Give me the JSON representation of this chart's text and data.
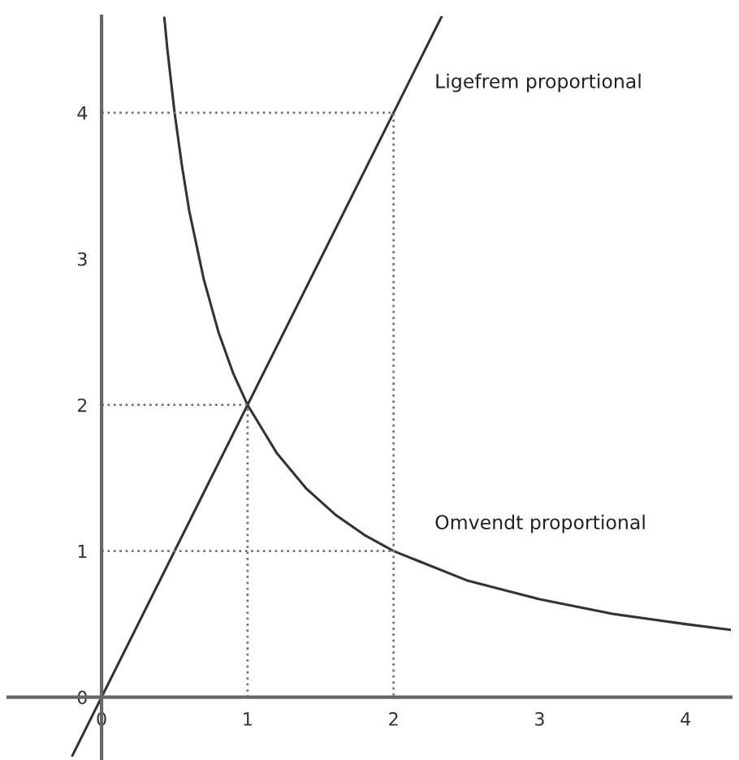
{
  "chart_data": {
    "type": "line",
    "xlim": [
      -0.64,
      4.31
    ],
    "ylim": [
      -0.43,
      4.66
    ],
    "xticks": [
      0,
      1,
      2,
      3,
      4
    ],
    "yticks": [
      0,
      1,
      2,
      3,
      4
    ],
    "grid": false,
    "legend": false,
    "marker": "none",
    "series": [
      {
        "name": "Ligefrem proportional",
        "x": [
          -0.2,
          2.33
        ],
        "values": [
          -0.4,
          4.66
        ],
        "color": "#333333",
        "line_style": "solid"
      },
      {
        "name": "Omvendt proportional",
        "x": [
          0.43,
          0.45,
          0.5,
          0.55,
          0.6,
          0.7,
          0.8,
          0.9,
          1,
          1.2,
          1.4,
          1.6,
          1.8,
          2,
          2.5,
          3,
          3.5,
          4,
          4.31
        ],
        "values": [
          4.65,
          4.44,
          4,
          3.64,
          3.33,
          2.86,
          2.5,
          2.22,
          2,
          1.67,
          1.43,
          1.25,
          1.11,
          1,
          0.8,
          0.67,
          0.57,
          0.5,
          0.46
        ],
        "color": "#333333",
        "line_style": "solid"
      },
      {
        "x": [
          0,
          2,
          2
        ],
        "values": [
          4,
          4,
          0
        ],
        "color": "#777777",
        "line_style": "dotted"
      },
      {
        "x": [
          0,
          1,
          1
        ],
        "values": [
          2,
          2,
          0
        ],
        "color": "#777777",
        "line_style": "dotted"
      },
      {
        "x": [
          0,
          2
        ],
        "values": [
          1,
          1
        ],
        "color": "#777777",
        "line_style": "dotted"
      }
    ]
  }
}
